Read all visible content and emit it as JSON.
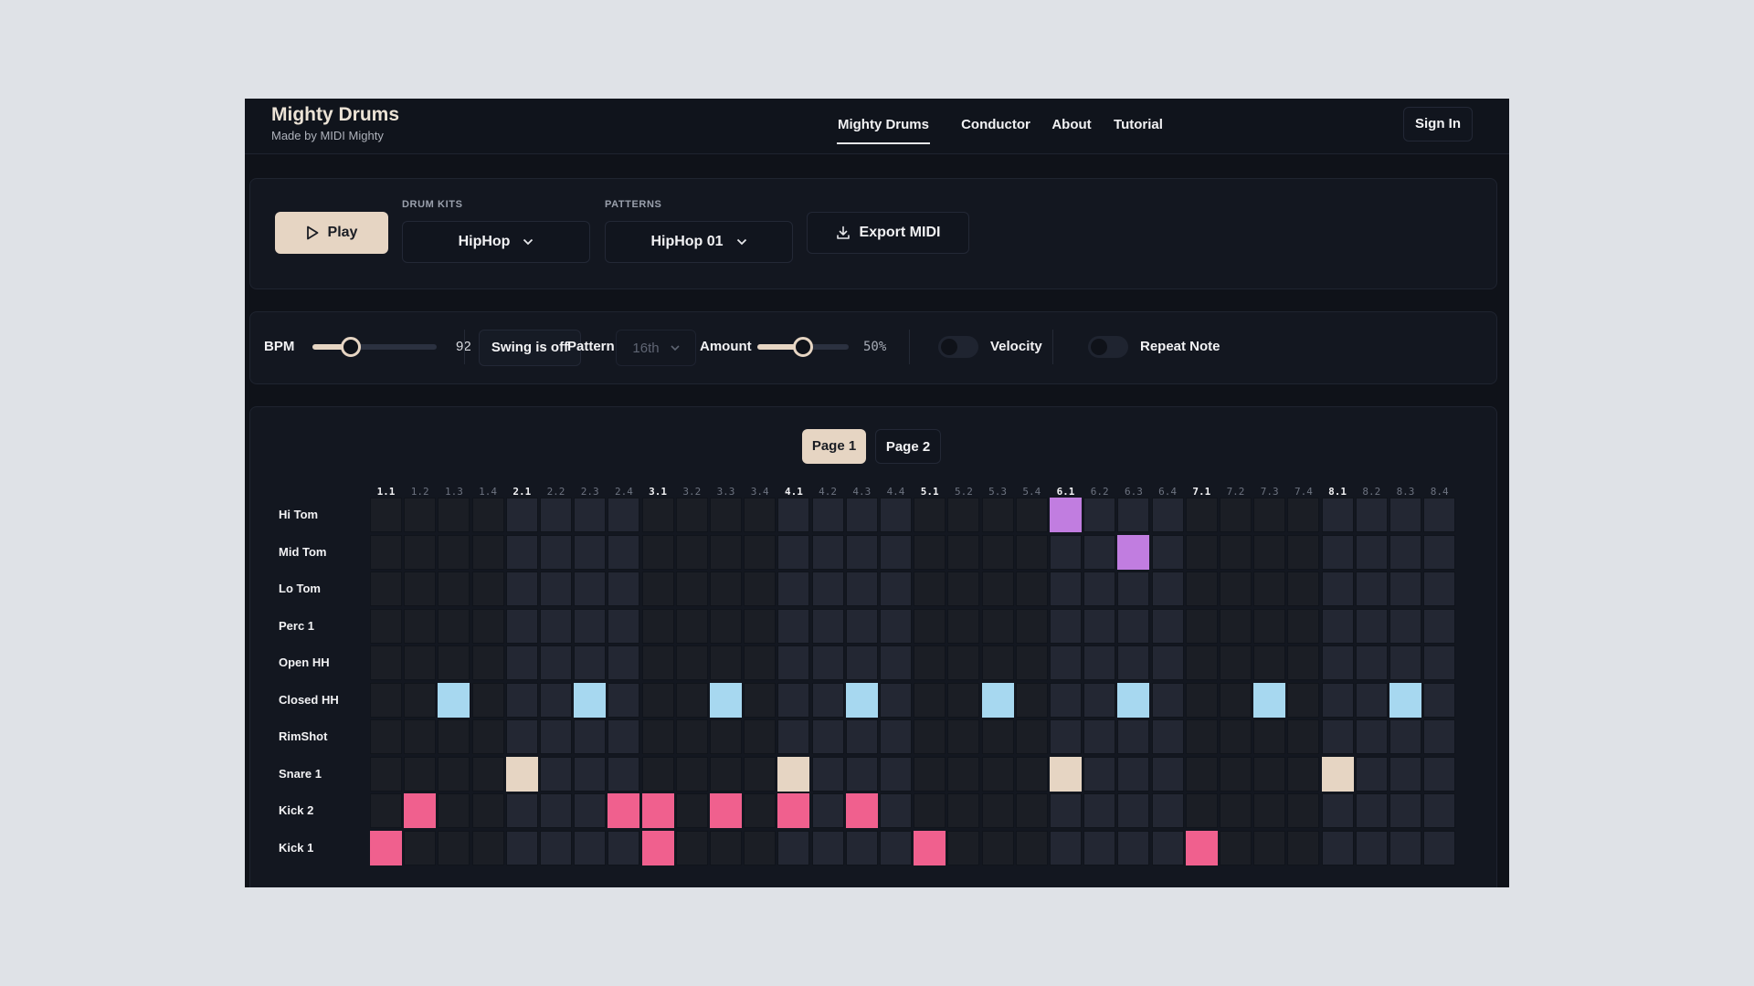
{
  "brand": {
    "title": "Mighty Drums",
    "subtitle": "Made by MIDI Mighty"
  },
  "nav": {
    "items": [
      {
        "label": "Mighty Drums",
        "active": true
      },
      {
        "label": "Conductor",
        "active": false
      },
      {
        "label": "About",
        "active": false
      },
      {
        "label": "Tutorial",
        "active": false
      }
    ],
    "signin": "Sign In"
  },
  "controls": {
    "play": "Play",
    "drum_kits_label": "DRUM KITS",
    "drum_kit_value": "HipHop",
    "patterns_label": "PATTERNS",
    "pattern_value": "HipHop 01",
    "export": "Export MIDI"
  },
  "transport": {
    "bpm_label": "BPM",
    "bpm_value": "92",
    "bpm_level": 0.31,
    "swing": "Swing is off",
    "pattern_label": "Pattern",
    "pattern_value": "16th",
    "amount_label": "Amount",
    "amount_value": "50%",
    "amount_level": 0.5,
    "velocity": "Velocity",
    "velocity_on": false,
    "repeat_note": "Repeat Note",
    "repeat_on": false
  },
  "pages": [
    {
      "label": "Page 1",
      "active": true
    },
    {
      "label": "Page 2",
      "active": false
    }
  ],
  "grid": {
    "steps": [
      "1.1",
      "1.2",
      "1.3",
      "1.4",
      "2.1",
      "2.2",
      "2.3",
      "2.4",
      "3.1",
      "3.2",
      "3.3",
      "3.4",
      "4.1",
      "4.2",
      "4.3",
      "4.4",
      "5.1",
      "5.2",
      "5.3",
      "5.4",
      "6.1",
      "6.2",
      "6.3",
      "6.4",
      "7.1",
      "7.2",
      "7.3",
      "7.4",
      "8.1",
      "8.2",
      "8.3",
      "8.4"
    ],
    "colors": {
      "Hi Tom": "#c17de0",
      "Mid Tom": "#c17de0",
      "Closed HH": "#a7d8f0",
      "Snare 1": "#e6d5c3",
      "Kick 2": "#f0608e",
      "Kick 1": "#f0608e"
    },
    "rows": [
      {
        "name": "Hi Tom",
        "on": [
          20
        ]
      },
      {
        "name": "Mid Tom",
        "on": [
          22
        ]
      },
      {
        "name": "Lo Tom",
        "on": []
      },
      {
        "name": "Perc 1",
        "on": []
      },
      {
        "name": "Open HH",
        "on": []
      },
      {
        "name": "Closed HH",
        "on": [
          2,
          6,
          10,
          14,
          18,
          22,
          26,
          30
        ]
      },
      {
        "name": "RimShot",
        "on": []
      },
      {
        "name": "Snare 1",
        "on": [
          4,
          12,
          20,
          28
        ]
      },
      {
        "name": "Kick 2",
        "on": [
          1,
          7,
          8,
          10,
          12,
          14
        ]
      },
      {
        "name": "Kick 1",
        "on": [
          0,
          8,
          16,
          24
        ]
      }
    ]
  }
}
